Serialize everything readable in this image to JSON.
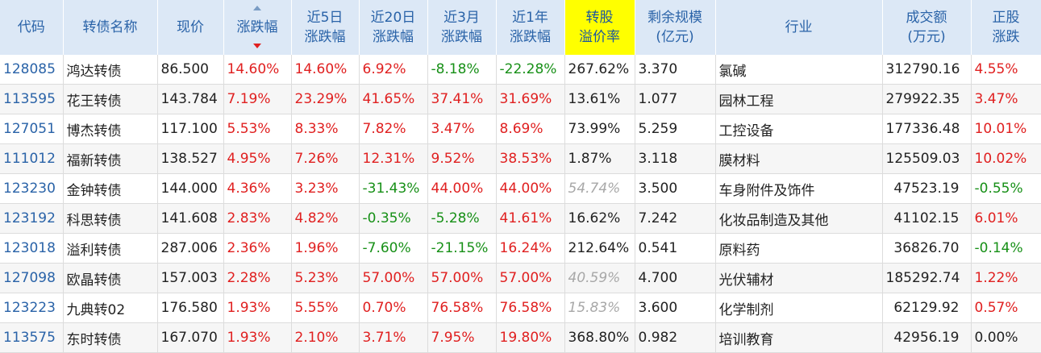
{
  "headers": {
    "code": "代码",
    "name": "转债名称",
    "price": "现价",
    "change": "涨跌幅",
    "d5": [
      "近5日",
      "涨跌幅"
    ],
    "d20": [
      "近20日",
      "涨跌幅"
    ],
    "m3": [
      "近3月",
      "涨跌幅"
    ],
    "y1": [
      "近1年",
      "涨跌幅"
    ],
    "premium": [
      "转股",
      "溢价率"
    ],
    "scale": [
      "剩余规模",
      "(亿元)"
    ],
    "industry": "行业",
    "volume": [
      "成交额",
      "(万元)"
    ],
    "stock_change": [
      "正股",
      "涨跌"
    ]
  },
  "colors": {
    "up": "#e02020",
    "down": "#179017",
    "header_bg": "#dce8f6",
    "highlight": "#ffff00"
  },
  "rows": [
    {
      "code": "128085",
      "name": "鸿达转债",
      "price": "86.500",
      "change": "14.60%",
      "d5": "14.60%",
      "d20": "6.92%",
      "m3": "-8.18%",
      "y1": "-22.28%",
      "premium": "267.62%",
      "scale": "3.370",
      "industry": "氯碱",
      "volume": "312790.16",
      "stock_change": "4.55%",
      "premium_muted": false
    },
    {
      "code": "113595",
      "name": "花王转债",
      "price": "143.784",
      "change": "7.19%",
      "d5": "23.29%",
      "d20": "41.65%",
      "m3": "37.41%",
      "y1": "31.69%",
      "premium": "13.61%",
      "scale": "1.077",
      "industry": "园林工程",
      "volume": "279922.35",
      "stock_change": "3.47%",
      "premium_muted": false
    },
    {
      "code": "127051",
      "name": "博杰转债",
      "price": "117.100",
      "change": "5.53%",
      "d5": "8.33%",
      "d20": "7.82%",
      "m3": "3.47%",
      "y1": "8.69%",
      "premium": "73.99%",
      "scale": "5.259",
      "industry": "工控设备",
      "volume": "177336.48",
      "stock_change": "10.01%",
      "premium_muted": false
    },
    {
      "code": "111012",
      "name": "福新转债",
      "price": "138.527",
      "change": "4.95%",
      "d5": "7.26%",
      "d20": "12.31%",
      "m3": "9.52%",
      "y1": "38.53%",
      "premium": "1.87%",
      "scale": "3.118",
      "industry": "膜材料",
      "volume": "125509.03",
      "stock_change": "10.02%",
      "premium_muted": false
    },
    {
      "code": "123230",
      "name": "金钟转债",
      "price": "144.000",
      "change": "4.36%",
      "d5": "3.23%",
      "d20": "-31.43%",
      "m3": "44.00%",
      "y1": "44.00%",
      "premium": "54.74%",
      "scale": "3.500",
      "industry": "车身附件及饰件",
      "volume": "47523.19",
      "stock_change": "-0.55%",
      "premium_muted": true
    },
    {
      "code": "123192",
      "name": "科思转债",
      "price": "141.608",
      "change": "2.83%",
      "d5": "4.82%",
      "d20": "-0.35%",
      "m3": "-5.28%",
      "y1": "41.61%",
      "premium": "16.62%",
      "scale": "7.242",
      "industry": "化妆品制造及其他",
      "volume": "41102.15",
      "stock_change": "6.01%",
      "premium_muted": false
    },
    {
      "code": "123018",
      "name": "溢利转债",
      "price": "287.006",
      "change": "2.36%",
      "d5": "1.96%",
      "d20": "-7.60%",
      "m3": "-21.15%",
      "y1": "16.24%",
      "premium": "212.64%",
      "scale": "0.541",
      "industry": "原料药",
      "volume": "36826.70",
      "stock_change": "-0.14%",
      "premium_muted": false
    },
    {
      "code": "127098",
      "name": "欧晶转债",
      "price": "157.003",
      "change": "2.28%",
      "d5": "5.23%",
      "d20": "57.00%",
      "m3": "57.00%",
      "y1": "57.00%",
      "premium": "40.59%",
      "scale": "4.700",
      "industry": "光伏辅材",
      "volume": "185292.74",
      "stock_change": "1.22%",
      "premium_muted": true
    },
    {
      "code": "123223",
      "name": "九典转02",
      "price": "176.580",
      "change": "1.93%",
      "d5": "5.55%",
      "d20": "0.70%",
      "m3": "76.58%",
      "y1": "76.58%",
      "premium": "15.83%",
      "scale": "3.600",
      "industry": "化学制剂",
      "volume": "62129.92",
      "stock_change": "0.57%",
      "premium_muted": true
    },
    {
      "code": "113575",
      "name": "东时转债",
      "price": "167.070",
      "change": "1.93%",
      "d5": "2.10%",
      "d20": "3.71%",
      "m3": "7.95%",
      "y1": "19.80%",
      "premium": "368.80%",
      "scale": "0.982",
      "industry": "培训教育",
      "volume": "42956.19",
      "stock_change": "0.00%",
      "premium_muted": false
    }
  ]
}
